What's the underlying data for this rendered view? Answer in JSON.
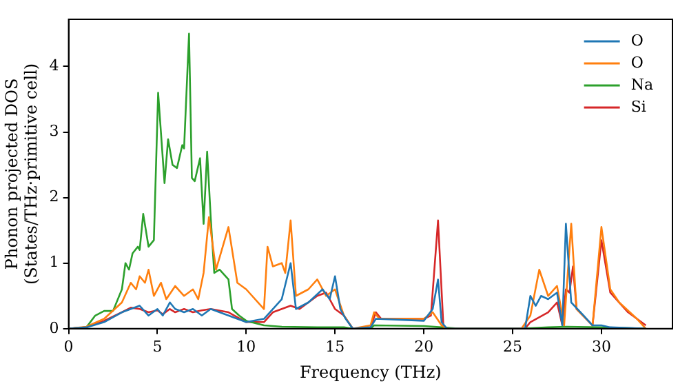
{
  "chart_data": {
    "type": "line",
    "xlabel": "Frequency (THz)",
    "ylabel": "Phonon projected DOS\n(States/THz·primitive cell)",
    "xlim": [
      0,
      34
    ],
    "ylim": [
      0,
      4.72
    ],
    "xticks": [
      0,
      5,
      10,
      15,
      20,
      25,
      30
    ],
    "yticks": [
      0,
      1,
      2,
      3,
      4
    ],
    "grid": false,
    "legend": "top right",
    "marker": "none",
    "line_style": "solid",
    "series": [
      {
        "name": "O",
        "color": "#1f77b4",
        "x": [
          0,
          1,
          2,
          3,
          3.5,
          4,
          4.5,
          5,
          5.3,
          5.7,
          6,
          6.5,
          7,
          7.5,
          8,
          9,
          10,
          11,
          11.5,
          12,
          12.5,
          12.8,
          13.5,
          14.3,
          14.7,
          15,
          15.3,
          15.6,
          16,
          17,
          17.3,
          20,
          20.5,
          20.8,
          21,
          21.3,
          25.7,
          26,
          26.3,
          26.6,
          27,
          27.5,
          27.8,
          28,
          28.3,
          29,
          29.5,
          30,
          30.5,
          32.5
        ],
        "values": [
          0,
          0.02,
          0.1,
          0.25,
          0.3,
          0.35,
          0.2,
          0.3,
          0.2,
          0.4,
          0.3,
          0.25,
          0.3,
          0.2,
          0.3,
          0.2,
          0.1,
          0.15,
          0.3,
          0.45,
          1.0,
          0.3,
          0.4,
          0.6,
          0.45,
          0.8,
          0.3,
          0.15,
          0,
          0.02,
          0.15,
          0.12,
          0.3,
          0.75,
          0.1,
          0,
          0,
          0.5,
          0.35,
          0.5,
          0.45,
          0.55,
          0.05,
          1.6,
          0.4,
          0.2,
          0.05,
          0.05,
          0.02,
          0
        ]
      },
      {
        "name": "O",
        "color": "#ff7f0e",
        "x": [
          0,
          1,
          2,
          3,
          3.5,
          3.8,
          4,
          4.3,
          4.5,
          4.8,
          5.2,
          5.5,
          6,
          6.5,
          7,
          7.3,
          7.6,
          7.9,
          8.3,
          9,
          9.5,
          10,
          11,
          11.2,
          11.5,
          12,
          12.2,
          12.5,
          12.8,
          13.5,
          14,
          14.5,
          15,
          15.5,
          16,
          17,
          17.2,
          17.5,
          20,
          20.5,
          21,
          21.3,
          25.5,
          26,
          26.5,
          27,
          27.5,
          27.9,
          28.3,
          28.6,
          29.5,
          30,
          30.5,
          31,
          32,
          32.5
        ],
        "values": [
          0,
          0.03,
          0.15,
          0.4,
          0.7,
          0.6,
          0.8,
          0.7,
          0.9,
          0.5,
          0.7,
          0.45,
          0.65,
          0.5,
          0.6,
          0.45,
          0.85,
          1.7,
          0.9,
          1.55,
          0.7,
          0.6,
          0.3,
          1.25,
          0.95,
          1.0,
          0.85,
          1.65,
          0.5,
          0.6,
          0.75,
          0.5,
          0.6,
          0.2,
          0,
          0.05,
          0.25,
          0.15,
          0.15,
          0.25,
          0.05,
          0,
          0,
          0.2,
          0.9,
          0.5,
          0.65,
          0.05,
          1.6,
          0.3,
          0.05,
          1.55,
          0.6,
          0.4,
          0.15,
          0
        ]
      },
      {
        "name": "Na",
        "color": "#2ca02c",
        "x": [
          0,
          1,
          1.5,
          2,
          2.5,
          3,
          3.2,
          3.4,
          3.6,
          3.9,
          4.0,
          4.2,
          4.5,
          4.8,
          5.04,
          5.4,
          5.6,
          5.85,
          6.1,
          6.4,
          6.5,
          6.78,
          6.94,
          7.1,
          7.4,
          7.6,
          7.8,
          8.0,
          8.2,
          8.5,
          9.0,
          9.2,
          9.6,
          10,
          11,
          12,
          14,
          15.5,
          16,
          17,
          17.2,
          20,
          21,
          22,
          25.5,
          27,
          28,
          30,
          32.5
        ],
        "values": [
          0,
          0.02,
          0.2,
          0.27,
          0.27,
          0.6,
          1.0,
          0.9,
          1.15,
          1.25,
          1.2,
          1.75,
          1.25,
          1.35,
          3.6,
          2.22,
          2.89,
          2.5,
          2.45,
          2.8,
          2.75,
          4.5,
          2.3,
          2.25,
          2.6,
          1.6,
          2.7,
          1.7,
          0.85,
          0.9,
          0.75,
          0.3,
          0.2,
          0.12,
          0.05,
          0.03,
          0.02,
          0.02,
          0,
          0,
          0.05,
          0.04,
          0.02,
          0,
          0,
          0.02,
          0.03,
          0.02,
          0
        ]
      },
      {
        "name": "Si",
        "color": "#d62728",
        "x": [
          0,
          1,
          2,
          3,
          3.5,
          4,
          4.5,
          5,
          5.3,
          5.7,
          6,
          6.5,
          7,
          7.5,
          8,
          9,
          10,
          11,
          11.5,
          12,
          12.5,
          13,
          13.5,
          14,
          14.5,
          15,
          15.5,
          16,
          17,
          17.3,
          17.6,
          20,
          20.4,
          20.8,
          21.1,
          21.3,
          25.7,
          26,
          27,
          27.5,
          27.8,
          28,
          28.2,
          28.4,
          28.6,
          29.5,
          30,
          30.5,
          31,
          31.5,
          32.5
        ],
        "values": [
          0,
          0.02,
          0.12,
          0.25,
          0.32,
          0.3,
          0.25,
          0.28,
          0.22,
          0.3,
          0.25,
          0.3,
          0.25,
          0.28,
          0.3,
          0.25,
          0.1,
          0.1,
          0.25,
          0.3,
          0.35,
          0.3,
          0.4,
          0.5,
          0.55,
          0.3,
          0.2,
          0,
          0.02,
          0.25,
          0.15,
          0.15,
          0.2,
          1.65,
          0.05,
          0,
          0,
          0.1,
          0.25,
          0.4,
          0.05,
          0.6,
          0.55,
          0.95,
          0.3,
          0.05,
          1.35,
          0.55,
          0.4,
          0.25,
          0.05
        ]
      }
    ]
  }
}
